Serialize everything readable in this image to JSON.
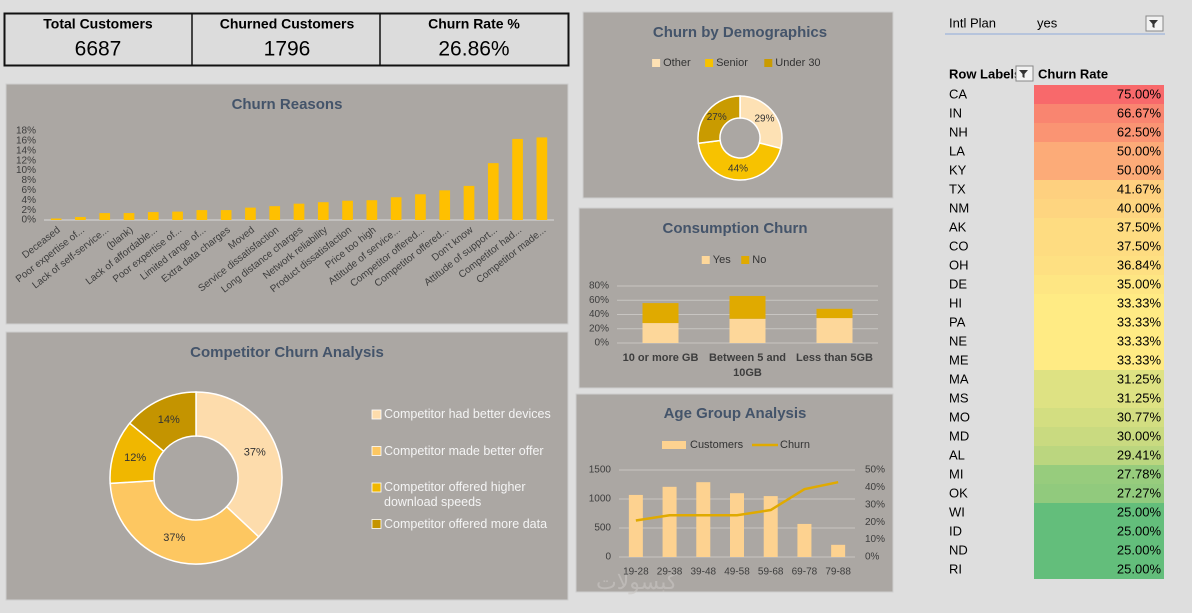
{
  "kpis": [
    {
      "label": "Total Customers",
      "value": "6687"
    },
    {
      "label": "Churned Customers",
      "value": "1796"
    },
    {
      "label": "Churn Rate %",
      "value": "26.86%"
    }
  ],
  "chart_data": [
    {
      "type": "bar",
      "title": "Churn Reasons",
      "color": "#ffc000",
      "grid": false,
      "categories": [
        "Deceased",
        "Poor expertise of...",
        "Lack of self-service...",
        "(blank)",
        "Lack of affordable...",
        "Poor expertise of...",
        "Limited range of...",
        "Extra data charges",
        "Moved",
        "Service dissatisfaction",
        "Long distance charges",
        "Network reliability",
        "Product dissatisfaction",
        "Price too high",
        "Attitude of service...",
        "Competitor offered...",
        "Competitor offered...",
        "Don't know",
        "Attitude of support...",
        "Competitor had...",
        "Competitor made..."
      ],
      "values": [
        0.3,
        0.6,
        1.4,
        1.4,
        1.6,
        1.7,
        2.0,
        2.0,
        2.5,
        2.8,
        3.3,
        3.6,
        3.9,
        4.0,
        4.6,
        5.2,
        6.0,
        6.9,
        11.5,
        16.4,
        16.7
      ],
      "ylim": [
        0,
        18
      ],
      "yticks": [
        {
          "value": 0,
          "label": "0%"
        },
        {
          "value": 2,
          "label": "2%"
        },
        {
          "value": 4,
          "label": "4%"
        },
        {
          "value": 6,
          "label": "6%"
        },
        {
          "value": 8,
          "label": "8%"
        },
        {
          "value": 10,
          "label": "10%"
        },
        {
          "value": 12,
          "label": "12%"
        },
        {
          "value": 14,
          "label": "14%"
        },
        {
          "value": 16,
          "label": "16%"
        },
        {
          "value": 18,
          "label": "18%"
        }
      ]
    },
    {
      "type": "donut",
      "title": "Churn by Demographics",
      "categories": [
        "Other",
        "Senior",
        "Under 30"
      ],
      "values": [
        29,
        44,
        27
      ],
      "value_labels": [
        "29%",
        "44%",
        "27%"
      ],
      "colors": [
        "#fde1b4",
        "#f7c200",
        "#c99b00"
      ],
      "legend": "top"
    },
    {
      "type": "stacked",
      "title": "Consumption Churn",
      "categories": [
        "10 or more GB",
        "Between 5 and 10GB",
        "Less than 5GB"
      ],
      "series": [
        {
          "name": "Yes",
          "color": "#fdd79a",
          "values": [
            28,
            34,
            35
          ]
        },
        {
          "name": "No",
          "color": "#e0aa00",
          "values": [
            28,
            32,
            13
          ]
        }
      ],
      "ylim": [
        0,
        80
      ],
      "yticks": [
        {
          "value": 0,
          "label": "0%"
        },
        {
          "value": 20,
          "label": "20%"
        },
        {
          "value": 40,
          "label": "40%"
        },
        {
          "value": 60,
          "label": "60%"
        },
        {
          "value": 80,
          "label": "80%"
        }
      ],
      "grid": true,
      "legend": "top"
    },
    {
      "type": "donut",
      "title": "Competitor Churn Analysis",
      "categories": [
        "Competitor had better devices",
        "Competitor made better offer",
        "Competitor offered higher download speeds",
        "Competitor offered more data"
      ],
      "values": [
        37,
        37,
        12,
        14
      ],
      "value_labels": [
        "37%",
        "37%",
        "12%",
        "14%"
      ],
      "colors": [
        "#fddcac",
        "#fdc761",
        "#f0b700",
        "#c49400"
      ],
      "legend": "right"
    },
    {
      "type": "combo",
      "title": "Age Group Analysis",
      "categories": [
        "19-28",
        "29-38",
        "39-48",
        "49-58",
        "59-68",
        "69-78",
        "79-88"
      ],
      "series": [
        {
          "name": "Customers",
          "type": "bar",
          "color": "#fdd290",
          "values": [
            1070,
            1210,
            1290,
            1100,
            1050,
            570,
            210
          ]
        },
        {
          "name": "Churn",
          "type": "line",
          "axis": "y2",
          "color": "#e0aa00",
          "values": [
            21,
            24,
            24,
            24,
            27,
            39,
            43
          ]
        }
      ],
      "ylim": [
        0,
        1500
      ],
      "yticks": [
        0,
        500,
        1000,
        1500
      ],
      "y2lim": [
        0,
        50
      ],
      "y2ticks": [
        {
          "value": 0,
          "label": "0%"
        },
        {
          "value": 10,
          "label": "10%"
        },
        {
          "value": 20,
          "label": "20%"
        },
        {
          "value": 30,
          "label": "30%"
        },
        {
          "value": 40,
          "label": "40%"
        },
        {
          "value": 50,
          "label": "50%"
        }
      ],
      "grid": true,
      "legend": "top"
    }
  ],
  "pivot": {
    "filter_label": "Intl Plan",
    "filter_value": "yes",
    "headers": [
      "Row Labels",
      "Churn Rate"
    ],
    "rows": [
      [
        "CA",
        "75.00%"
      ],
      [
        "IN",
        "66.67%"
      ],
      [
        "NH",
        "62.50%"
      ],
      [
        "LA",
        "50.00%"
      ],
      [
        "KY",
        "50.00%"
      ],
      [
        "TX",
        "41.67%"
      ],
      [
        "NM",
        "40.00%"
      ],
      [
        "AK",
        "37.50%"
      ],
      [
        "CO",
        "37.50%"
      ],
      [
        "OH",
        "36.84%"
      ],
      [
        "DE",
        "35.00%"
      ],
      [
        "HI",
        "33.33%"
      ],
      [
        "PA",
        "33.33%"
      ],
      [
        "NE",
        "33.33%"
      ],
      [
        "ME",
        "33.33%"
      ],
      [
        "MA",
        "31.25%"
      ],
      [
        "MS",
        "31.25%"
      ],
      [
        "MO",
        "30.77%"
      ],
      [
        "MD",
        "30.00%"
      ],
      [
        "AL",
        "29.41%"
      ],
      [
        "MI",
        "27.78%"
      ],
      [
        "OK",
        "27.27%"
      ],
      [
        "WI",
        "25.00%"
      ],
      [
        "ID",
        "25.00%"
      ],
      [
        "ND",
        "25.00%"
      ],
      [
        "RI",
        "25.00%"
      ]
    ],
    "row_colors": [
      "#f8696b",
      "#f98570",
      "#fa9473",
      "#fcab78",
      "#fcab78",
      "#fed07f",
      "#fed580",
      "#fedc81",
      "#fedc81",
      "#fee082",
      "#fee683",
      "#ffeb84",
      "#ffeb84",
      "#ffeb84",
      "#ffeb84",
      "#dee283",
      "#dee283",
      "#d3de81",
      "#c9da80",
      "#bbd67f",
      "#97cc7d",
      "#91ca7d",
      "#63be7b",
      "#63be7b",
      "#63be7b",
      "#63be7b"
    ]
  },
  "watermark": "كبسولات"
}
